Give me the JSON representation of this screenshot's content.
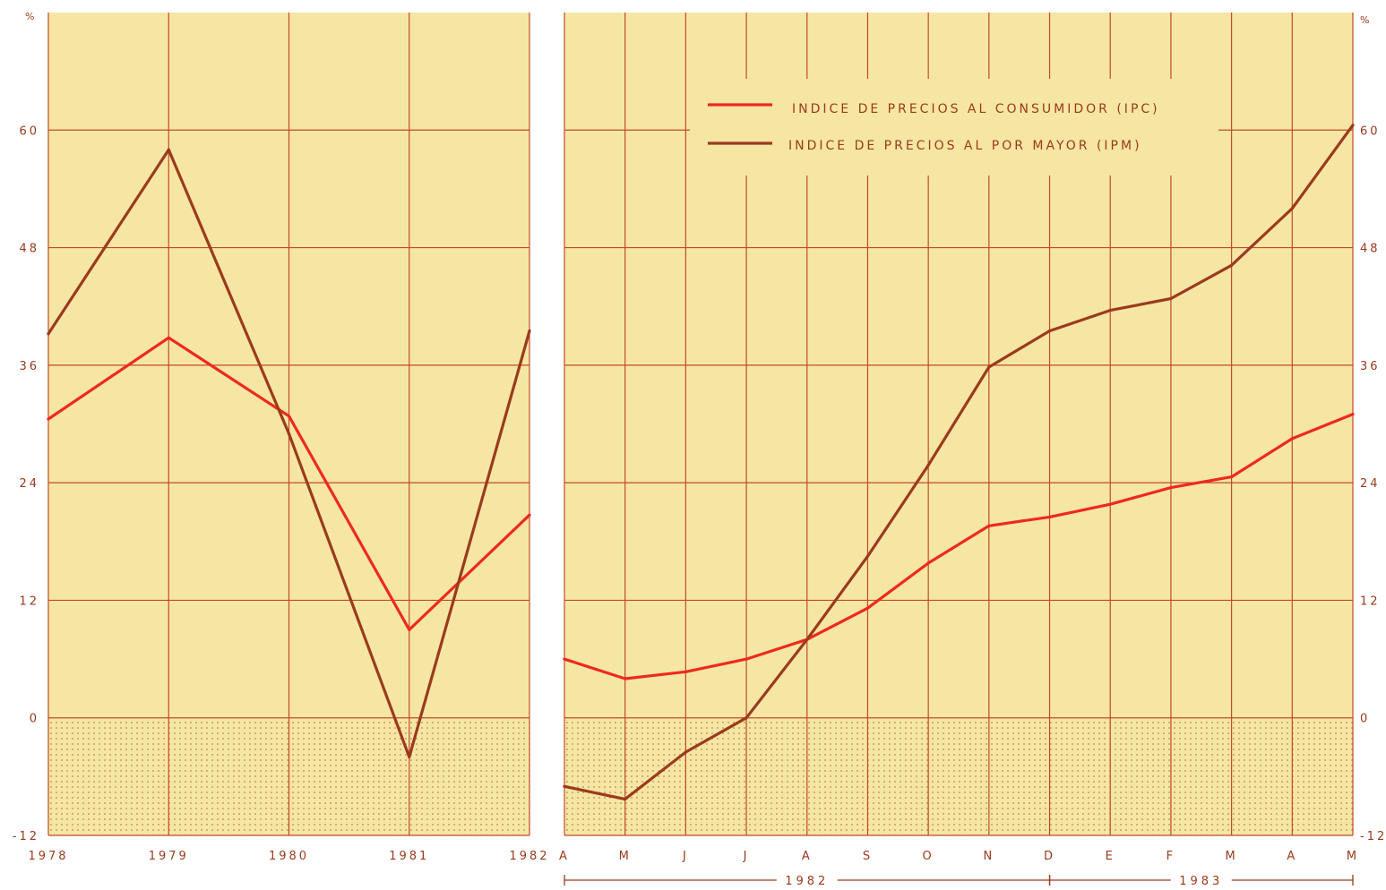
{
  "colors": {
    "background": "#f6e6a4",
    "grid": "#c24a2a",
    "ipc": "#ee2a1c",
    "ipm": "#9b3a1e",
    "text": "#9a3a1c",
    "hatch_dot": "#b9884e"
  },
  "chart_data": [
    {
      "type": "line",
      "title": "",
      "y_unit": "%",
      "x": [
        "1978",
        "1979",
        "1980",
        "1981",
        "1982"
      ],
      "ylim": [
        -12,
        72
      ],
      "ytick_labels": [
        "-12",
        "0",
        "12",
        "24",
        "36",
        "48",
        "60"
      ],
      "grid": true,
      "negative_region_hatched": true,
      "series": [
        {
          "key": "ipc",
          "values": [
            30.5,
            38.8,
            30.8,
            9.0,
            20.7
          ]
        },
        {
          "key": "ipm",
          "values": [
            39.2,
            58.0,
            29.0,
            -4.0,
            39.5
          ]
        }
      ]
    },
    {
      "type": "line",
      "title": "",
      "y_unit": "%",
      "x": [
        "A",
        "M",
        "J",
        "J",
        "A",
        "S",
        "O",
        "N",
        "D",
        "E",
        "F",
        "M",
        "A",
        "M"
      ],
      "year_spans": [
        {
          "label": "1982",
          "from": 0,
          "to": 8
        },
        {
          "label": "1983",
          "from": 8,
          "to": 13
        }
      ],
      "ylim": [
        -12,
        72
      ],
      "ytick_labels": [
        "-12",
        "0",
        "12",
        "24",
        "36",
        "48",
        "60"
      ],
      "grid": true,
      "negative_region_hatched": true,
      "legend_position": "top-center",
      "series": [
        {
          "key": "ipc",
          "name": "INDICE DE PRECIOS AL CONSUMIDOR (IPC)",
          "values": [
            6.0,
            4.0,
            4.7,
            6.0,
            8.0,
            11.2,
            15.8,
            19.6,
            20.5,
            21.8,
            23.5,
            24.6,
            28.5,
            31.0
          ]
        },
        {
          "key": "ipm",
          "name": "INDICE DE PRECIOS AL POR MAYOR (IPM)",
          "values": [
            -7.0,
            -8.3,
            -3.5,
            0.0,
            8.0,
            16.5,
            25.8,
            35.8,
            39.5,
            41.6,
            42.8,
            46.2,
            52.0,
            60.5
          ]
        }
      ]
    }
  ]
}
